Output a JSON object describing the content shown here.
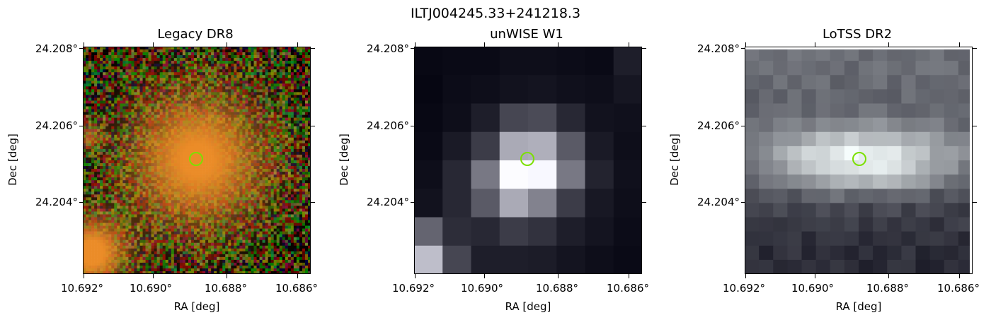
{
  "figure": {
    "title": "ILTJ004245.33+241218.3"
  },
  "panels": [
    {
      "title": "Legacy DR8",
      "xlabel": "RA [deg]",
      "ylabel": "Dec [deg]",
      "image_style": "rgb",
      "x_ticks": [
        "10.692°",
        "10.690°",
        "10.688°",
        "10.686°"
      ],
      "y_ticks": [
        "24.208°",
        "24.206°",
        "24.204°"
      ]
    },
    {
      "title": "unWISE W1",
      "xlabel": "RA [deg]",
      "ylabel": "Dec [deg]",
      "image_style": "grayscale",
      "x_ticks": [
        "10.692°",
        "10.690°",
        "10.688°",
        "10.686°"
      ],
      "y_ticks": [
        "24.208°",
        "24.206°",
        "24.204°"
      ]
    },
    {
      "title": "LoTSS DR2",
      "xlabel": "RA [deg]",
      "ylabel": "Dec [deg]",
      "image_style": "bone",
      "x_ticks": [
        "10.692°",
        "10.690°",
        "10.688°",
        "10.686°"
      ],
      "y_ticks": [
        "24.208°",
        "24.206°",
        "24.204°"
      ]
    }
  ],
  "colors": {
    "marker": "#7be000",
    "axes": "#000000"
  },
  "icons": {
    "source_marker": "circle-outline"
  }
}
